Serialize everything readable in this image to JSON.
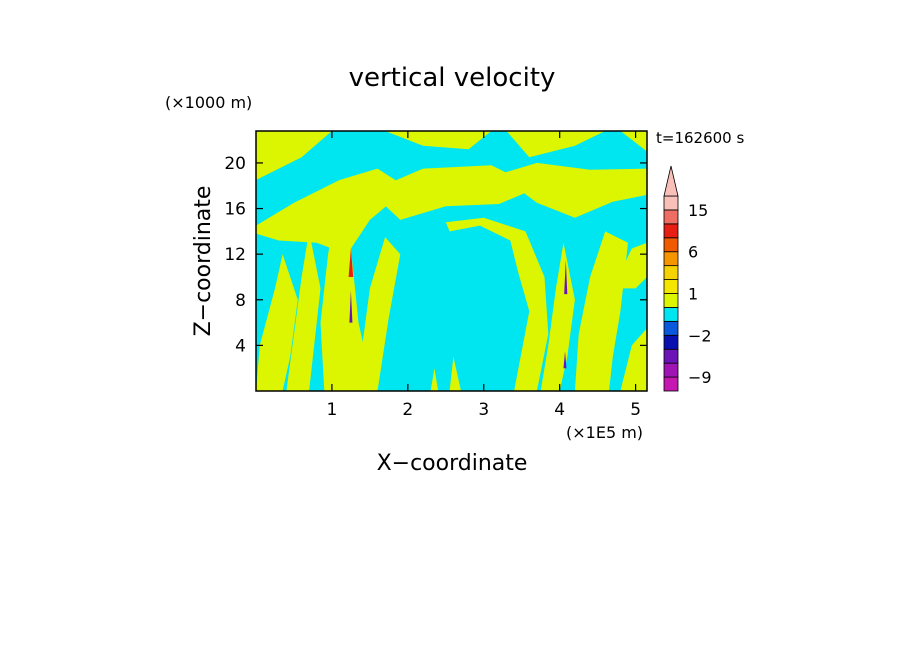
{
  "chart_data": {
    "type": "heatmap",
    "title": "vertical velocity",
    "xlabel": "X−coordinate",
    "ylabel": "Z−coordinate",
    "x_unit": "(×1E5 m)",
    "y_unit": "(×1000 m)",
    "time_label": "t=162600 s",
    "xlim": [
      0,
      5.15
    ],
    "ylim": [
      0,
      22.8
    ],
    "x_ticks": [
      {
        "value": 1,
        "label": "1"
      },
      {
        "value": 2,
        "label": "2"
      },
      {
        "value": 3,
        "label": "3"
      },
      {
        "value": 4,
        "label": "4"
      },
      {
        "value": 5,
        "label": "5"
      }
    ],
    "y_ticks": [
      {
        "value": 4,
        "label": "4"
      },
      {
        "value": 8,
        "label": "8"
      },
      {
        "value": 12,
        "label": "12"
      },
      {
        "value": 16,
        "label": "16"
      },
      {
        "value": 20,
        "label": "20"
      }
    ],
    "colorbar": {
      "labels": [
        {
          "value": 15,
          "label": "15"
        },
        {
          "value": 6,
          "label": "6"
        },
        {
          "value": 1,
          "label": "1"
        },
        {
          "value": -2,
          "label": "−2"
        },
        {
          "value": -9,
          "label": "−9"
        }
      ],
      "bins": [
        {
          "lo": -12,
          "hi": -9,
          "color": "#c418b0"
        },
        {
          "lo": -9,
          "hi": -6,
          "color": "#a014b4"
        },
        {
          "lo": -6,
          "hi": -3,
          "color": "#6a14b8"
        },
        {
          "lo": -3,
          "hi": -2,
          "color": "#0a10b0"
        },
        {
          "lo": -2,
          "hi": -1,
          "color": "#0a58dc"
        },
        {
          "lo": -1,
          "hi": 0,
          "color": "#00e6f0"
        },
        {
          "lo": 0,
          "hi": 1,
          "color": "#dcf500"
        },
        {
          "lo": 1,
          "hi": 2,
          "color": "#f5e600"
        },
        {
          "lo": 2,
          "hi": 3,
          "color": "#f5d200"
        },
        {
          "lo": 3,
          "hi": 6,
          "color": "#f59600"
        },
        {
          "lo": 6,
          "hi": 9,
          "color": "#f05a00"
        },
        {
          "lo": 9,
          "hi": 12,
          "color": "#e61e14"
        },
        {
          "lo": 12,
          "hi": 15,
          "color": "#ee6e64"
        },
        {
          "lo": 15,
          "hi": 21,
          "color": "#f8c0b8"
        }
      ],
      "extend_top": true
    },
    "field_colors": {
      "negative_weak": "#00e6f0",
      "positive_weak": "#dcf500",
      "strong_up": "#e61e14",
      "strong_down": "#6a14b8"
    },
    "field": {
      "background": "negative_weak",
      "regions": [
        {
          "sign": "positive_weak",
          "polygon": [
            [
              0,
              18.5
            ],
            [
              0.6,
              20.5
            ],
            [
              1.0,
              22.8
            ],
            [
              0,
              22.8
            ]
          ]
        },
        {
          "sign": "positive_weak",
          "polygon": [
            [
              1.7,
              22.8
            ],
            [
              2.2,
              21.5
            ],
            [
              2.8,
              21.2
            ],
            [
              3.1,
              22.8
            ]
          ]
        },
        {
          "sign": "positive_weak",
          "polygon": [
            [
              3.3,
              22.8
            ],
            [
              3.6,
              20.5
            ],
            [
              4.2,
              21.5
            ],
            [
              4.6,
              22.8
            ]
          ]
        },
        {
          "sign": "positive_weak",
          "polygon": [
            [
              4.8,
              22.8
            ],
            [
              5.15,
              21.0
            ],
            [
              5.15,
              22.8
            ]
          ]
        },
        {
          "sign": "positive_weak",
          "polygon": [
            [
              0,
              14.5
            ],
            [
              0.5,
              16.5
            ],
            [
              1.1,
              18.5
            ],
            [
              1.6,
              19.5
            ],
            [
              2.0,
              17.8
            ],
            [
              1.5,
              15.0
            ],
            [
              1.2,
              12.0
            ],
            [
              0.8,
              13.0
            ],
            [
              0.3,
              13.2
            ],
            [
              0,
              13.8
            ]
          ]
        },
        {
          "sign": "positive_weak",
          "polygon": [
            [
              1.5,
              17.5
            ],
            [
              2.2,
              19.5
            ],
            [
              3.1,
              19.8
            ],
            [
              3.7,
              17.8
            ],
            [
              3.2,
              16.4
            ],
            [
              2.5,
              16.2
            ],
            [
              1.9,
              15.0
            ]
          ]
        },
        {
          "sign": "positive_weak",
          "polygon": [
            [
              3.2,
              19.0
            ],
            [
              3.7,
              16.5
            ],
            [
              4.2,
              15.2
            ],
            [
              4.7,
              16.6
            ],
            [
              5.15,
              17.2
            ],
            [
              5.15,
              19.5
            ],
            [
              4.4,
              19.4
            ],
            [
              3.7,
              20.0
            ]
          ]
        },
        {
          "sign": "positive_weak",
          "polygon": [
            [
              0.9,
              0
            ],
            [
              0.85,
              6.0
            ],
            [
              0.95,
              12.0
            ],
            [
              1.05,
              16.0
            ],
            [
              1.25,
              12.5
            ],
            [
              1.35,
              6.0
            ],
            [
              1.55,
              0
            ]
          ]
        },
        {
          "sign": "positive_weak",
          "polygon": [
            [
              1.35,
              0
            ],
            [
              1.4,
              4.0
            ],
            [
              1.5,
              9.0
            ],
            [
              1.7,
              13.5
            ],
            [
              1.9,
              12.0
            ],
            [
              1.75,
              6.5
            ],
            [
              1.6,
              0
            ]
          ]
        },
        {
          "sign": "positive_weak",
          "polygon": [
            [
              0,
              0
            ],
            [
              0.05,
              4.0
            ],
            [
              0.25,
              9.0
            ],
            [
              0.35,
              12.0
            ],
            [
              0.55,
              8.0
            ],
            [
              0.45,
              3.0
            ],
            [
              0.35,
              0
            ]
          ]
        },
        {
          "sign": "positive_weak",
          "polygon": [
            [
              0.4,
              0
            ],
            [
              0.5,
              5.0
            ],
            [
              0.6,
              10.0
            ],
            [
              0.7,
              14.0
            ],
            [
              0.85,
              9.0
            ],
            [
              0.75,
              3.0
            ],
            [
              0.7,
              0
            ]
          ]
        },
        {
          "sign": "positive_weak",
          "polygon": [
            [
              2.55,
              14.0
            ],
            [
              2.95,
              14.5
            ],
            [
              3.35,
              13.2
            ],
            [
              3.45,
              10.5
            ],
            [
              3.6,
              7.0
            ],
            [
              3.5,
              3.5
            ],
            [
              3.4,
              0
            ],
            [
              3.7,
              0
            ],
            [
              3.85,
              5.0
            ],
            [
              3.8,
              10.0
            ],
            [
              3.55,
              14.0
            ],
            [
              3.0,
              15.2
            ],
            [
              2.5,
              14.8
            ]
          ]
        },
        {
          "sign": "positive_weak",
          "polygon": [
            [
              3.75,
              0
            ],
            [
              3.85,
              4.0
            ],
            [
              3.95,
              9.0
            ],
            [
              4.05,
              13.0
            ],
            [
              4.2,
              8.0
            ],
            [
              4.1,
              3.0
            ],
            [
              4.0,
              0
            ]
          ]
        },
        {
          "sign": "positive_weak",
          "polygon": [
            [
              4.2,
              0
            ],
            [
              4.25,
              5.0
            ],
            [
              4.4,
              10.0
            ],
            [
              4.6,
              14.0
            ],
            [
              4.9,
              13.0
            ],
            [
              4.8,
              7.0
            ],
            [
              4.7,
              3.0
            ],
            [
              4.65,
              0
            ]
          ]
        },
        {
          "sign": "positive_weak",
          "polygon": [
            [
              4.8,
              0
            ],
            [
              4.95,
              4.0
            ],
            [
              5.15,
              5.5
            ],
            [
              5.15,
              0
            ]
          ]
        },
        {
          "sign": "positive_weak",
          "polygon": [
            [
              4.7,
              9.0
            ],
            [
              4.95,
              12.5
            ],
            [
              5.15,
              13.0
            ],
            [
              5.15,
              10.0
            ],
            [
              5.0,
              9.0
            ]
          ]
        },
        {
          "sign": "positive_weak",
          "polygon": [
            [
              2.55,
              0
            ],
            [
              2.6,
              3.0
            ],
            [
              2.7,
              0
            ]
          ]
        },
        {
          "sign": "positive_weak",
          "polygon": [
            [
              2.3,
              0
            ],
            [
              2.35,
              2.0
            ],
            [
              2.4,
              0
            ]
          ]
        },
        {
          "sign": "strong_up",
          "polygon": [
            [
              1.22,
              10.0
            ],
            [
              1.25,
              12.5
            ],
            [
              1.28,
              10.0
            ]
          ]
        },
        {
          "sign": "strong_down",
          "polygon": [
            [
              1.23,
              6.0
            ],
            [
              1.25,
              8.8
            ],
            [
              1.27,
              6.0
            ]
          ]
        },
        {
          "sign": "strong_down",
          "polygon": [
            [
              4.06,
              8.5
            ],
            [
              4.08,
              11.5
            ],
            [
              4.1,
              8.5
            ]
          ]
        },
        {
          "sign": "strong_down",
          "polygon": [
            [
              4.05,
              2.0
            ],
            [
              4.07,
              3.5
            ],
            [
              4.09,
              2.0
            ]
          ]
        }
      ]
    }
  }
}
